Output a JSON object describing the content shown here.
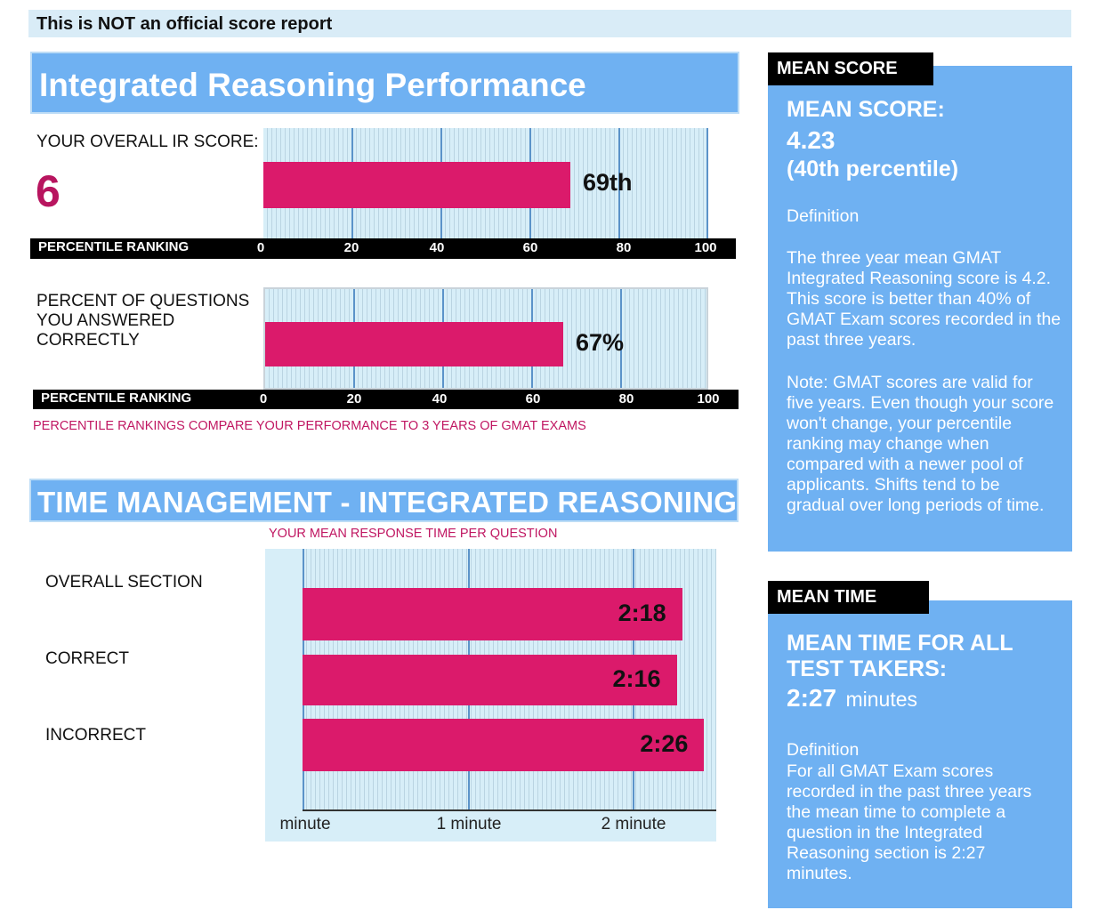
{
  "notice": "This is NOT an official score report",
  "ir": {
    "title": "Integrated Reasoning Performance",
    "score_label": "YOUR OVERALL IR SCORE:",
    "score_value": "6",
    "questions_label": [
      "PERCENT OF QUESTIONS",
      "YOU ANSWERED",
      "CORRECTLY"
    ],
    "footnote": "PERCENTILE RANKINGS COMPARE YOUR PERFORMANCE TO 3 YEARS OF GMAT EXAMS"
  },
  "time": {
    "title": "TIME MANAGEMENT - INTEGRATED REASONING",
    "subtitle": "YOUR MEAN RESPONSE TIME PER QUESTION",
    "row_labels": [
      "OVERALL SECTION",
      "CORRECT",
      "INCORRECT"
    ]
  },
  "mean_score": {
    "tab": "MEAN SCORE",
    "heading": "MEAN SCORE:",
    "value": "4.23",
    "percentile": "(40th percentile)",
    "definition_label": "Definition",
    "definition": "The three year mean GMAT Integrated Reasoning score is 4.2. This score is better than 40% of GMAT Exam scores recorded in the past three years.",
    "note": "Note:  GMAT scores are valid for five years. Even though your score won't change, your percentile ranking may change when compared with a newer pool of applicants.  Shifts tend to be gradual over long periods of time."
  },
  "mean_time": {
    "tab": "MEAN TIME",
    "heading": "MEAN TIME FOR ALL TEST TAKERS:",
    "value": "2:27",
    "unit": "minutes",
    "definition_label": "Definition",
    "definition": "For all GMAT Exam scores recorded in the past three years the mean time to complete a question in the Integrated Reasoning  section is 2:27 minutes."
  },
  "chart_data": [
    {
      "type": "bar",
      "orientation": "horizontal",
      "xlabel": "PERCENTILE RANKING",
      "xlim": [
        0,
        100
      ],
      "ticks": [
        "0",
        "20",
        "40",
        "60",
        "80",
        "100"
      ],
      "values": [
        69
      ],
      "data_labels": [
        "69th"
      ]
    },
    {
      "type": "bar",
      "orientation": "horizontal",
      "xlabel": "PERCENTILE RANKING",
      "xlim": [
        0,
        100
      ],
      "ticks": [
        "0",
        "20",
        "40",
        "60",
        "80",
        "100"
      ],
      "values": [
        67
      ],
      "data_labels": [
        "67%"
      ]
    },
    {
      "type": "bar",
      "orientation": "horizontal",
      "title": "YOUR MEAN RESPONSE TIME PER QUESTION",
      "categories": [
        "OVERALL SECTION",
        "CORRECT",
        "INCORRECT"
      ],
      "values": [
        2.3,
        2.267,
        2.433
      ],
      "value_unit": "minutes",
      "data_labels": [
        "2:18",
        "2:16",
        "2:26"
      ],
      "xlim": [
        0,
        2.5
      ],
      "ticks": [
        {
          "value": 0,
          "label": "minute"
        },
        {
          "value": 1,
          "label": "1 minute"
        },
        {
          "value": 2,
          "label": "2 minute"
        }
      ]
    }
  ]
}
